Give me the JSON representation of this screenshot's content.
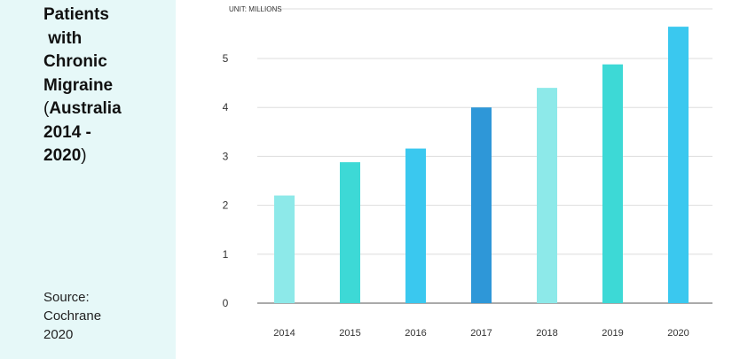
{
  "sidebar": {
    "title_lines": [
      "Patients",
      " with",
      "Chronic",
      "Migraine"
    ],
    "title_paren_open": "(",
    "title_bold_lines": [
      "Australia",
      "2014 -",
      "2020"
    ],
    "title_paren_close": ")",
    "source_lines": [
      "Source:",
      "Cochrane",
      "2020"
    ]
  },
  "colors": {
    "panel_bg": "#e6f8f8",
    "light_cyan": "#8de9e9",
    "turquoise": "#3dd9d6",
    "sky_blue": "#3ac8ef",
    "blue": "#2e97d8",
    "grid": "#dddddd",
    "axis": "#555555"
  },
  "chart_data": {
    "type": "bar",
    "title": "",
    "unit_label": "UNIT: MILLIONS",
    "xlabel": "",
    "ylabel": "",
    "categories": [
      "2014",
      "2015",
      "2016",
      "2017",
      "2018",
      "2019",
      "2020"
    ],
    "values": [
      2.2,
      2.88,
      3.16,
      4.0,
      4.4,
      4.88,
      5.65
    ],
    "bar_colors": [
      "#8de9e9",
      "#3dd9d6",
      "#3ac8ef",
      "#2e97d8",
      "#8de9e9",
      "#3dd9d6",
      "#3ac8ef"
    ],
    "ylim": [
      0,
      6
    ],
    "yticks": [
      0,
      1,
      2,
      3,
      4,
      5
    ],
    "grid": true,
    "legend": "none"
  }
}
